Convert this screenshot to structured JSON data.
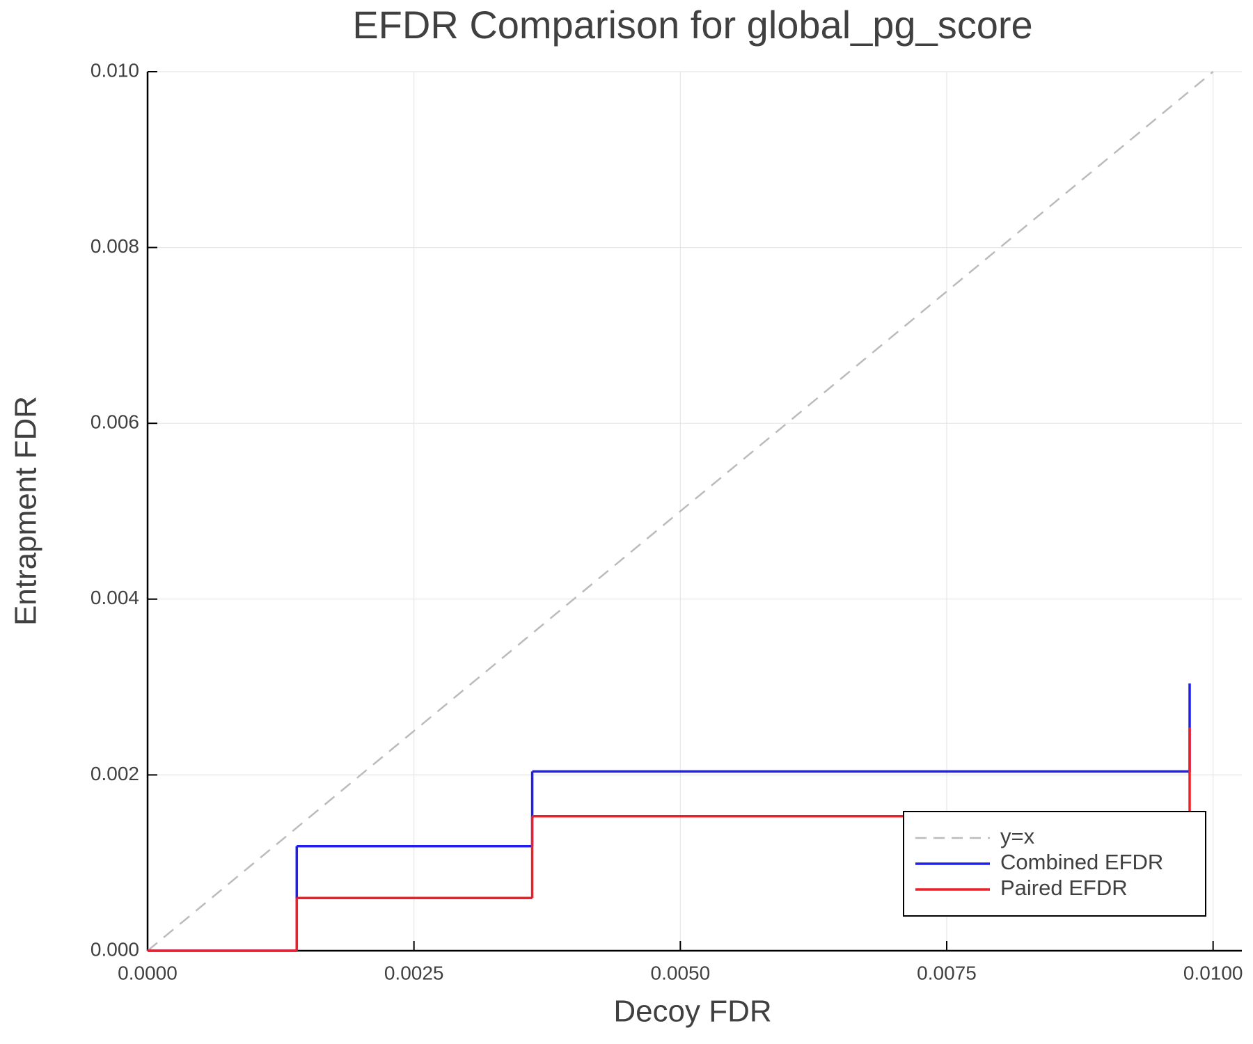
{
  "chart_data": {
    "type": "step",
    "title": "EFDR Comparison for global_pg_score",
    "x_label": "Decoy FDR",
    "y_label": "Entrapment FDR",
    "xlim": [
      0,
      0.01027
    ],
    "ylim": [
      0,
      0.01
    ],
    "xticks": [
      {
        "value": 0,
        "label": "0.0000"
      },
      {
        "value": 0.0025,
        "label": "0.0025"
      },
      {
        "value": 0.005,
        "label": "0.0050"
      },
      {
        "value": 0.0075,
        "label": "0.0075"
      },
      {
        "value": 0.01,
        "label": "0.0100"
      }
    ],
    "yticks": [
      {
        "value": 0,
        "label": "0.000"
      },
      {
        "value": 0.002,
        "label": "0.002"
      },
      {
        "value": 0.004,
        "label": "0.004"
      },
      {
        "value": 0.006,
        "label": "0.006"
      },
      {
        "value": 0.008,
        "label": "0.008"
      },
      {
        "value": 0.01,
        "label": "0.010"
      }
    ],
    "grid": true,
    "legend": "bottom-right",
    "series": [
      {
        "name": "y=x",
        "color": "#bbbbbb",
        "style": "dashed",
        "step": false,
        "x": [
          0,
          0.01
        ],
        "values": [
          0,
          0.01
        ]
      },
      {
        "name": "Combined EFDR",
        "color": "#1f1fe8",
        "style": "solid",
        "step": true,
        "x": [
          0,
          0.0014,
          0.00361,
          0.00978
        ],
        "values": [
          0,
          0.00119,
          0.00204,
          0.00304
        ]
      },
      {
        "name": "Paired EFDR",
        "color": "#ee1f26",
        "style": "solid",
        "step": true,
        "x": [
          0,
          0.0014,
          0.00361,
          0.00978
        ],
        "values": [
          0,
          0.0006,
          0.00153,
          0.00254
        ]
      }
    ]
  }
}
